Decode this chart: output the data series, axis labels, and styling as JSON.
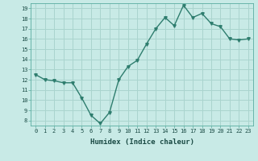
{
  "x": [
    0,
    1,
    2,
    3,
    4,
    5,
    6,
    7,
    8,
    9,
    10,
    11,
    12,
    13,
    14,
    15,
    16,
    17,
    18,
    19,
    20,
    21,
    22,
    23
  ],
  "y": [
    12.5,
    12.0,
    11.9,
    11.7,
    11.7,
    10.2,
    8.5,
    7.7,
    8.8,
    12.0,
    13.3,
    13.9,
    15.5,
    17.0,
    18.1,
    17.3,
    19.3,
    18.1,
    18.5,
    17.5,
    17.2,
    16.0,
    15.9,
    16.0
  ],
  "xlabel": "Humidex (Indice chaleur)",
  "line_color": "#2e7d6e",
  "marker": "v",
  "bg_color": "#c8eae6",
  "grid_color": "#aad4ce",
  "ylim": [
    7.5,
    19.5
  ],
  "xlim": [
    -0.5,
    23.5
  ],
  "yticks": [
    8,
    9,
    10,
    11,
    12,
    13,
    14,
    15,
    16,
    17,
    18,
    19
  ],
  "xticks": [
    0,
    1,
    2,
    3,
    4,
    5,
    6,
    7,
    8,
    9,
    10,
    11,
    12,
    13,
    14,
    15,
    16,
    17,
    18,
    19,
    20,
    21,
    22,
    23
  ],
  "xtick_labels": [
    "0",
    "1",
    "2",
    "3",
    "4",
    "5",
    "6",
    "7",
    "8",
    "9",
    "10",
    "11",
    "12",
    "13",
    "14",
    "15",
    "16",
    "17",
    "18",
    "19",
    "20",
    "21",
    "22",
    "23"
  ]
}
